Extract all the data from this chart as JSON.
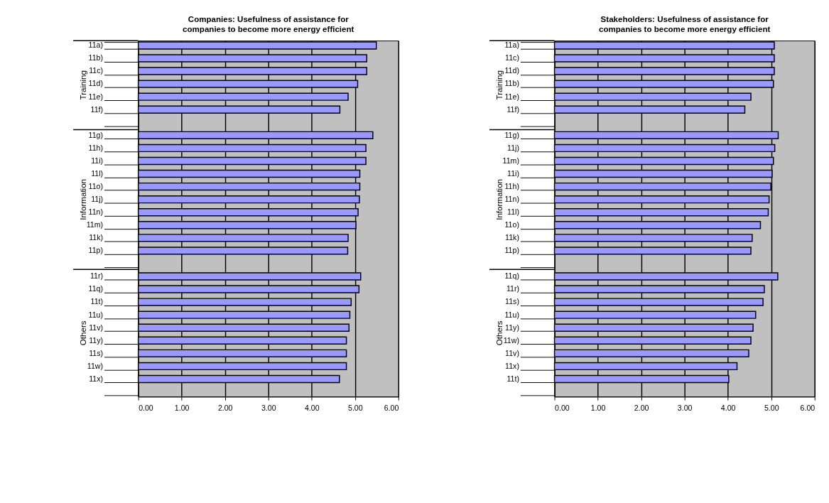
{
  "chart_data": [
    {
      "type": "bar",
      "orientation": "horizontal",
      "title": "Companies: Usefulness of assistance for companies to become more energy efficient",
      "categories": [
        "11a)",
        "11b)",
        "11c)",
        "11d)",
        "11e)",
        "11f)",
        null,
        "11g)",
        "11h)",
        "11i)",
        "11l)",
        "11o)",
        "11j)",
        "11n)",
        "11m)",
        "11k)",
        "11p)",
        null,
        "11r)",
        "11q)",
        "11t)",
        "11u)",
        "11v)",
        "11y)",
        "11s)",
        "11w)",
        "11x)",
        null
      ],
      "values": [
        5.49,
        5.27,
        5.27,
        5.06,
        4.84,
        4.65,
        null,
        5.41,
        5.25,
        5.25,
        5.11,
        5.11,
        5.1,
        5.07,
        5.02,
        4.84,
        4.83,
        null,
        5.13,
        5.09,
        4.91,
        4.88,
        4.86,
        4.8,
        4.8,
        4.8,
        4.64,
        null
      ],
      "color": "#9999ff",
      "annotations": [
        "Training",
        "Information",
        "Others"
      ],
      "xlim": [
        0,
        6
      ],
      "xticks": [
        {
          "value": 0,
          "label": "0.00"
        },
        {
          "value": 1,
          "label": "1.00"
        },
        {
          "value": 2,
          "label": "2.00"
        },
        {
          "value": 3,
          "label": "3.00"
        },
        {
          "value": 4,
          "label": "4.00"
        },
        {
          "value": 5,
          "label": "5.00"
        },
        {
          "value": 6,
          "label": "6.00"
        }
      ],
      "grid": "x"
    },
    {
      "type": "bar",
      "orientation": "horizontal",
      "title": "Stakeholders: Usefulness of assistance for companies to become more energy efficient",
      "categories": [
        "11a)",
        "11c)",
        "11d)",
        "11b)",
        "11e)",
        "11f)",
        null,
        "11g)",
        "11j)",
        "11m)",
        "11i)",
        "11h)",
        "11n)",
        "11l)",
        "11o)",
        "11k)",
        "11p)",
        null,
        "11q)",
        "11r)",
        "11s)",
        "11u)",
        "11y)",
        "11w)",
        "11v)",
        "11x)",
        "11t)",
        null
      ],
      "values": [
        5.07,
        5.07,
        5.07,
        5.05,
        4.53,
        4.39,
        null,
        5.16,
        5.08,
        5.05,
        5.02,
        4.99,
        4.95,
        4.93,
        4.75,
        4.56,
        4.53,
        null,
        5.15,
        4.84,
        4.81,
        4.64,
        4.58,
        4.53,
        4.48,
        4.21,
        4.02,
        null
      ],
      "color": "#9999ff",
      "annotations": [
        "Training",
        "Information",
        "Others"
      ],
      "xlim": [
        0,
        6
      ],
      "xticks": [
        {
          "value": 0,
          "label": "0.00"
        },
        {
          "value": 1,
          "label": "1.00"
        },
        {
          "value": 2,
          "label": "2.00"
        },
        {
          "value": 3,
          "label": "3.00"
        },
        {
          "value": 4,
          "label": "4.00"
        },
        {
          "value": 5,
          "label": "5.00"
        },
        {
          "value": 6,
          "label": "6.00"
        }
      ],
      "grid": "x"
    }
  ]
}
